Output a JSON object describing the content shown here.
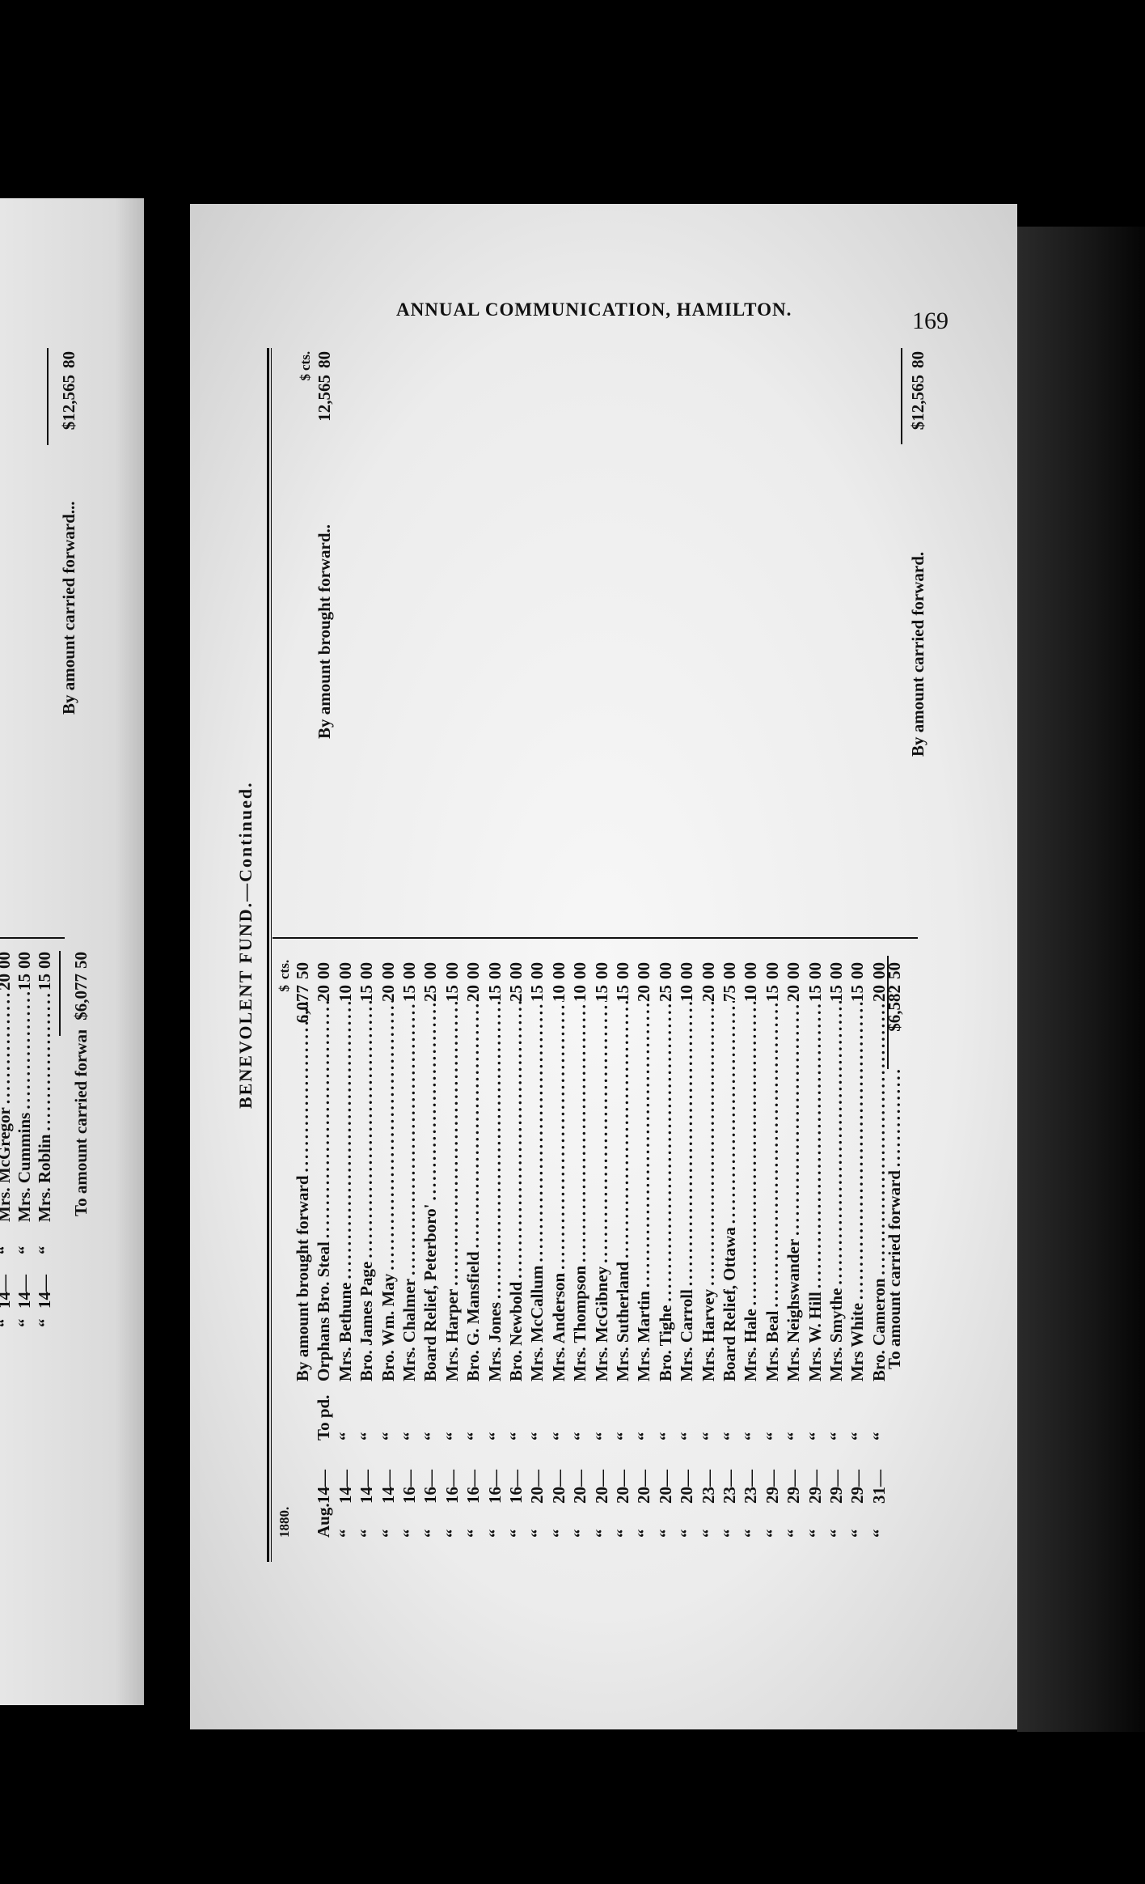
{
  "running_head": "ANNUAL COMMUNICATION, HAMILTON.",
  "page_number": "169",
  "title": "BENEVOLENT FUND.—Continued.",
  "debit": {
    "year": "1880.",
    "currency_header": {
      "dollars": "$",
      "cents": "cts."
    },
    "brought_forward": {
      "label": "By amount brought forward",
      "dollars": "6,077",
      "cents": "50"
    },
    "entries": [
      {
        "month": "Aug.",
        "day": "14—",
        "prefix": "To pd.",
        "payee": "Orphans Bro. Steal",
        "dollars": "20",
        "cents": "00"
      },
      {
        "month": "“",
        "day": "14—",
        "prefix": "“",
        "payee": "Mrs. Bethune",
        "dollars": "10",
        "cents": "00"
      },
      {
        "month": "“",
        "day": "14—",
        "prefix": "“",
        "payee": "Bro. James Page",
        "dollars": "15",
        "cents": "00"
      },
      {
        "month": "“",
        "day": "14—",
        "prefix": "“",
        "payee": "Bro. Wm. May",
        "dollars": "20",
        "cents": "00"
      },
      {
        "month": "“",
        "day": "16—",
        "prefix": "“",
        "payee": "Mrs. Chalmer",
        "dollars": "15",
        "cents": "00"
      },
      {
        "month": "“",
        "day": "16—",
        "prefix": "“",
        "payee": "Board Relief, Peterboro'",
        "dollars": "25",
        "cents": "00"
      },
      {
        "month": "“",
        "day": "16—",
        "prefix": "“",
        "payee": "Mrs. Harper",
        "dollars": "15",
        "cents": "00"
      },
      {
        "month": "“",
        "day": "16—",
        "prefix": "“",
        "payee": "Bro. G. Mansfield",
        "dollars": "20",
        "cents": "00"
      },
      {
        "month": "“",
        "day": "16—",
        "prefix": "“",
        "payee": "Mrs. Jones",
        "dollars": "15",
        "cents": "00"
      },
      {
        "month": "“",
        "day": "16—",
        "prefix": "“",
        "payee": "Bro. Newbold",
        "dollars": "25",
        "cents": "00"
      },
      {
        "month": "“",
        "day": "20—",
        "prefix": "“",
        "payee": "Mrs. McCallum",
        "dollars": "15",
        "cents": "00"
      },
      {
        "month": "“",
        "day": "20—",
        "prefix": "“",
        "payee": "Mrs. Anderson",
        "dollars": "10",
        "cents": "00"
      },
      {
        "month": "“",
        "day": "20—",
        "prefix": "“",
        "payee": "Mrs. Thompson",
        "dollars": "10",
        "cents": "00"
      },
      {
        "month": "“",
        "day": "20—",
        "prefix": "“",
        "payee": "Mrs. McGibney",
        "dollars": "15",
        "cents": "00"
      },
      {
        "month": "“",
        "day": "20—",
        "prefix": "“",
        "payee": "Mrs. Sutherland",
        "dollars": "15",
        "cents": "00"
      },
      {
        "month": "“",
        "day": "20—",
        "prefix": "“",
        "payee": "Mrs. Martin",
        "dollars": "20",
        "cents": "00"
      },
      {
        "month": "“",
        "day": "20—",
        "prefix": "“",
        "payee": "Bro. Tighe",
        "dollars": "25",
        "cents": "00"
      },
      {
        "month": "“",
        "day": "20—",
        "prefix": "“",
        "payee": "Mrs. Carroll",
        "dollars": "10",
        "cents": "00"
      },
      {
        "month": "“",
        "day": "23—",
        "prefix": "“",
        "payee": "Mrs. Harvey",
        "dollars": "20",
        "cents": "00"
      },
      {
        "month": "“",
        "day": "23—",
        "prefix": "“",
        "payee": "Board Relief, Ottawa",
        "dollars": "75",
        "cents": "00"
      },
      {
        "month": "“",
        "day": "23—",
        "prefix": "“",
        "payee": "Mrs. Hale",
        "dollars": "10",
        "cents": "00"
      },
      {
        "month": "“",
        "day": "29—",
        "prefix": "“",
        "payee": "Mrs. Beal",
        "dollars": "15",
        "cents": "00"
      },
      {
        "month": "“",
        "day": "29—",
        "prefix": "“",
        "payee": "Mrs. Neighswander",
        "dollars": "20",
        "cents": "00"
      },
      {
        "month": "“",
        "day": "29—",
        "prefix": "“",
        "payee": "Mrs. W. Hill",
        "dollars": "15",
        "cents": "00"
      },
      {
        "month": "“",
        "day": "29—",
        "prefix": "“",
        "payee": "Mrs. Smythe",
        "dollars": "15",
        "cents": "00"
      },
      {
        "month": "“",
        "day": "29—",
        "prefix": "“",
        "payee": "Mrs White",
        "dollars": "15",
        "cents": "00"
      },
      {
        "month": "“",
        "day": "31—",
        "prefix": "“",
        "payee": "Bro. Cameron",
        "dollars": "20",
        "cents": "00"
      }
    ],
    "carried_forward": {
      "label": "To amount carried forward",
      "dollars": "$6,582",
      "cents": "50"
    }
  },
  "credit": {
    "currency_header": {
      "dollars": "$",
      "cents": "cts."
    },
    "brought_forward": {
      "label": "By amount brought forward..",
      "dollars": "12,565",
      "cents": "80"
    },
    "carried_forward": {
      "label": "By amount carried forward.",
      "dollars": "$12,565",
      "cents": "80"
    }
  },
  "previous_page": {
    "entries": [
      {
        "month": "“",
        "day": "14—",
        "prefix": "“",
        "payee": "Mrs. McGregor",
        "dollars": "20",
        "cents": "00"
      },
      {
        "month": "“",
        "day": "14—",
        "prefix": "“",
        "payee": "Mrs. Cummins",
        "dollars": "15",
        "cents": "00"
      },
      {
        "month": "“",
        "day": "14—",
        "prefix": "“",
        "payee": "Mrs. Roblin",
        "dollars": "15",
        "cents": "00"
      }
    ],
    "debit_carried_forward": {
      "label": "To amount carried forward..",
      "dollars": "$6,077",
      "cents": "50"
    },
    "credit_carried_forward": {
      "label": "By amount carried forward...",
      "dollars": "$12,565",
      "cents": "80"
    }
  }
}
